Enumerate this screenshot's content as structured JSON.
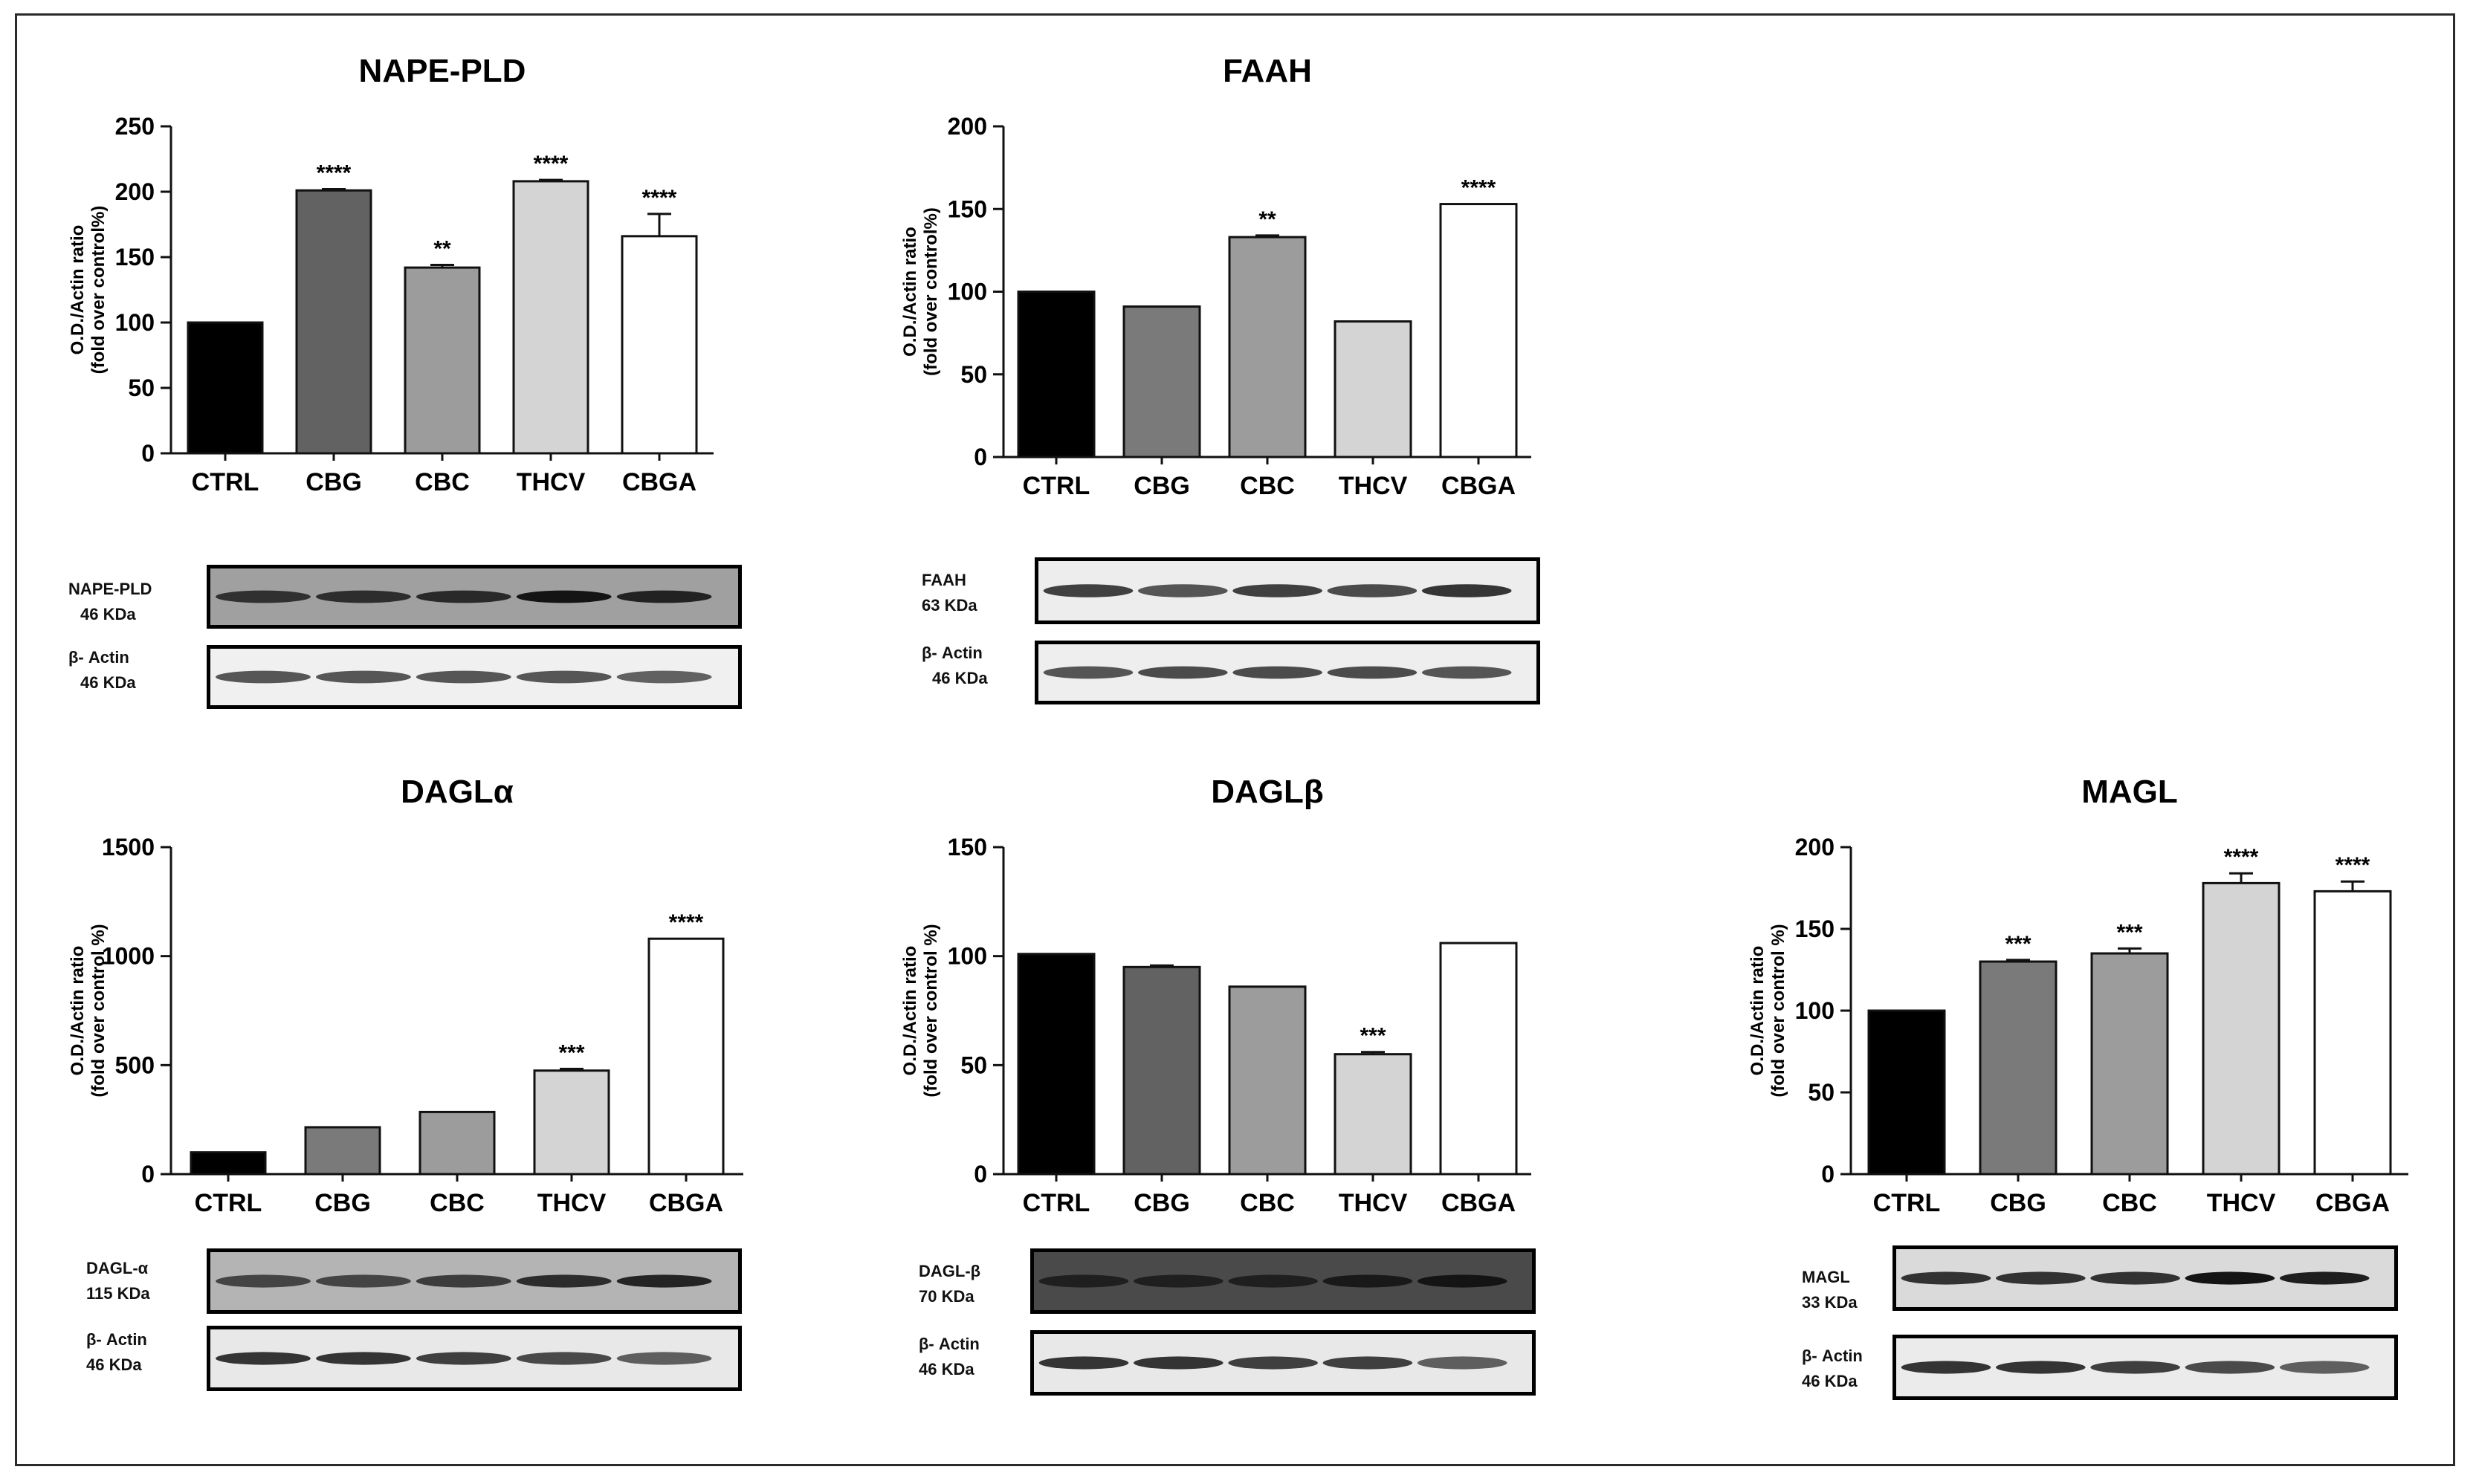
{
  "chart_data": [
    {
      "id": "nape",
      "type": "bar",
      "title": "NAPE-PLD",
      "ylabel": [
        "O.D./Actin ratio",
        "(fold over control%)"
      ],
      "xlabel": "",
      "categories": [
        "CTRL",
        "CBG",
        "CBC",
        "THCV",
        "CBGA"
      ],
      "values": [
        100,
        201,
        142,
        208,
        166
      ],
      "errors": [
        0,
        1,
        2,
        1,
        17
      ],
      "significance": [
        "",
        "****",
        "**",
        "****",
        "****"
      ],
      "yticks": [
        0,
        50,
        100,
        150,
        200,
        250
      ],
      "ylim": [
        0,
        250
      ],
      "bar_colors": [
        "#000000",
        "#626262",
        "#9c9c9c",
        "#d4d4d4",
        "#ffffff"
      ],
      "grid": false
    },
    {
      "id": "faah",
      "type": "bar",
      "title": "FAAH",
      "ylabel": [
        "O.D./Actin ratio",
        "(fold over control%)"
      ],
      "xlabel": "",
      "categories": [
        "CTRL",
        "CBG",
        "CBC",
        "THCV",
        "CBGA"
      ],
      "values": [
        100,
        91,
        133,
        82,
        153
      ],
      "errors": [
        0,
        0,
        1,
        0,
        0
      ],
      "significance": [
        "",
        "",
        "**",
        "",
        "****"
      ],
      "yticks": [
        0,
        50,
        100,
        150,
        200
      ],
      "ylim": [
        0,
        200
      ],
      "bar_colors": [
        "#000000",
        "#7a7a7a",
        "#9c9c9c",
        "#d4d4d4",
        "#ffffff"
      ],
      "grid": false
    },
    {
      "id": "dagla",
      "type": "bar",
      "title": "DAGLα",
      "ylabel": [
        "O.D./Actin ratio",
        "(fold over control %)"
      ],
      "xlabel": "",
      "categories": [
        "CTRL",
        "CBG",
        "CBC",
        "THCV",
        "CBGA"
      ],
      "values": [
        100,
        215,
        285,
        475,
        1080
      ],
      "errors": [
        0,
        0,
        0,
        8,
        0
      ],
      "significance": [
        "",
        "",
        "",
        "***",
        "****"
      ],
      "yticks": [
        0,
        500,
        1000,
        1500
      ],
      "ylim": [
        0,
        1500
      ],
      "bar_colors": [
        "#000000",
        "#7a7a7a",
        "#9c9c9c",
        "#d4d4d4",
        "#ffffff"
      ],
      "grid": false
    },
    {
      "id": "daglb",
      "type": "bar",
      "title": "DAGLβ",
      "ylabel": [
        "O.D./Actin ratio",
        "(fold over control %)"
      ],
      "xlabel": "",
      "categories": [
        "CTRL",
        "CBG",
        "CBC",
        "THCV",
        "CBGA"
      ],
      "values": [
        101,
        95,
        86,
        55,
        106
      ],
      "errors": [
        0,
        0.7,
        0,
        1,
        0
      ],
      "significance": [
        "",
        "",
        "",
        "***",
        ""
      ],
      "yticks": [
        0,
        50,
        100,
        150
      ],
      "ylim": [
        0,
        150
      ],
      "bar_colors": [
        "#000000",
        "#626262",
        "#9c9c9c",
        "#d4d4d4",
        "#ffffff"
      ],
      "grid": false
    },
    {
      "id": "magl",
      "type": "bar",
      "title": "MAGL",
      "ylabel": [
        "O.D./Actin ratio",
        "(fold over control %)"
      ],
      "xlabel": "",
      "categories": [
        "CTRL",
        "CBG",
        "CBC",
        "THCV",
        "CBGA"
      ],
      "values": [
        100,
        130,
        135,
        178,
        173
      ],
      "errors": [
        0,
        1,
        3,
        6,
        6
      ],
      "significance": [
        "",
        "***",
        "***",
        "****",
        "****"
      ],
      "yticks": [
        0,
        50,
        100,
        150,
        200
      ],
      "ylim": [
        0,
        200
      ],
      "bar_colors": [
        "#000000",
        "#7a7a7a",
        "#9c9c9c",
        "#d4d4d4",
        "#ffffff"
      ],
      "grid": false
    }
  ],
  "blots": {
    "nape": {
      "target": {
        "name": "NAPE-PLD",
        "size": "46 KDa",
        "intensity": [
          0.8,
          0.82,
          0.85,
          1.0,
          0.9
        ]
      },
      "actin": {
        "name": "β- Actin",
        "size": "46 KDa",
        "intensity": [
          0.7,
          0.7,
          0.7,
          0.7,
          0.65
        ]
      }
    },
    "faah": {
      "target": {
        "name": "FAAH",
        "size": "63 KDa",
        "intensity": [
          0.8,
          0.7,
          0.8,
          0.75,
          0.85
        ]
      },
      "actin": {
        "name": "β- Actin",
        "size": "46 KDa",
        "intensity": [
          0.7,
          0.75,
          0.75,
          0.75,
          0.7
        ]
      }
    },
    "dagla": {
      "target": {
        "name": "DAGL-α",
        "size": "115 KDa",
        "intensity": [
          0.7,
          0.7,
          0.75,
          0.85,
          0.9
        ]
      },
      "actin": {
        "name": "β- Actin",
        "size": "46 KDa",
        "intensity": [
          0.85,
          0.85,
          0.8,
          0.75,
          0.65
        ]
      }
    },
    "daglb": {
      "target": {
        "name": "DAGL-β",
        "size": "70 KDa",
        "intensity": [
          0.8,
          0.8,
          0.8,
          0.9,
          1.0
        ]
      },
      "actin": {
        "name": "β- Actin",
        "size": "46 KDa",
        "intensity": [
          0.85,
          0.85,
          0.8,
          0.8,
          0.65
        ]
      }
    },
    "magl": {
      "target": {
        "name": "MAGL",
        "size": "33 KDa",
        "intensity": [
          0.85,
          0.85,
          0.85,
          1.0,
          0.95
        ]
      },
      "actin": {
        "name": "β- Actin",
        "size": "46 KDa",
        "intensity": [
          0.85,
          0.85,
          0.8,
          0.75,
          0.65
        ]
      }
    }
  }
}
